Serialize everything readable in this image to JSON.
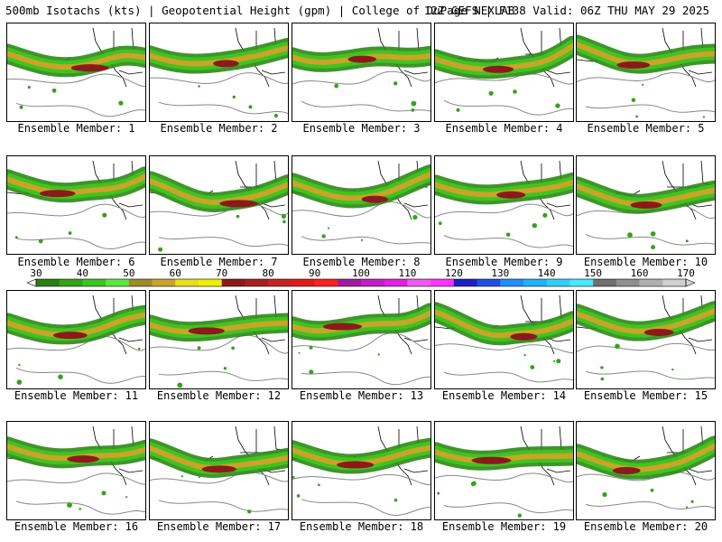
{
  "header": {
    "left": "500mb Isotachs (kts) | Geopotential Height (gpm) | College of DuPage NEXLAB",
    "right": "12Z GEFS | F138 Valid: 06Z THU MAY 29 2025"
  },
  "colorbar": {
    "labels": [
      "30",
      "40",
      "50",
      "60",
      "70",
      "80",
      "90",
      "100",
      "110",
      "120",
      "130",
      "140",
      "150",
      "160",
      "170"
    ],
    "colors": [
      "#2a7f13",
      "#34a31b",
      "#3fc41f",
      "#5ee640",
      "#9a8c2c",
      "#c9a32a",
      "#e6e018",
      "#f0f000",
      "#8b1a1a",
      "#a81f1f",
      "#c42323",
      "#e01a1a",
      "#ff2020",
      "#a01aa0",
      "#c21fc2",
      "#e022e0",
      "#f05cf0",
      "#ff33ff",
      "#2020c0",
      "#2050e0",
      "#2090ff",
      "#22b0ff",
      "#33d0ff",
      "#4ae8ff",
      "#707070",
      "#909090",
      "#b0b0b0",
      "#d0d0d0"
    ]
  },
  "members": [
    {
      "caption": "Ensemble Member: 1"
    },
    {
      "caption": "Ensemble Member: 2"
    },
    {
      "caption": "Ensemble Member: 3"
    },
    {
      "caption": "Ensemble Member: 4"
    },
    {
      "caption": "Ensemble Member: 5"
    },
    {
      "caption": "Ensemble Member: 6"
    },
    {
      "caption": "Ensemble Member: 7"
    },
    {
      "caption": "Ensemble Member: 8"
    },
    {
      "caption": "Ensemble Member: 9"
    },
    {
      "caption": "Ensemble Member: 10"
    },
    {
      "caption": "Ensemble Member: 11"
    },
    {
      "caption": "Ensemble Member: 12"
    },
    {
      "caption": "Ensemble Member: 13"
    },
    {
      "caption": "Ensemble Member: 14"
    },
    {
      "caption": "Ensemble Member: 15"
    },
    {
      "caption": "Ensemble Member: 16"
    },
    {
      "caption": "Ensemble Member: 17"
    },
    {
      "caption": "Ensemble Member: 18"
    },
    {
      "caption": "Ensemble Member: 19"
    },
    {
      "caption": "Ensemble Member: 20"
    }
  ]
}
